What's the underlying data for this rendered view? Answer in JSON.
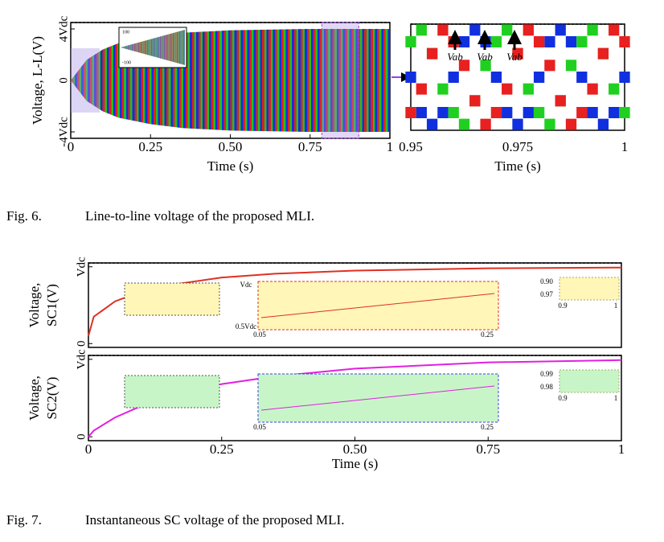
{
  "chart_data": [
    {
      "type": "band",
      "ylabel": "Voltage, L-L(V)",
      "xlabel": "Time (s)",
      "x": [
        0,
        0.05,
        0.1,
        0.15,
        0.25,
        0.35,
        0.5,
        0.75,
        1
      ],
      "values": [
        0,
        1.6,
        2.4,
        2.9,
        3.4,
        3.7,
        3.9,
        4,
        4
      ],
      "xlim": [
        0,
        1
      ],
      "ylim": [
        -4.5,
        4.5
      ],
      "xticks": [
        0,
        0.25,
        {
          "value": 0.5,
          "label": "0.50"
        },
        0.75,
        1
      ],
      "yticks": [
        {
          "value": 4,
          "label": "4Vdc"
        },
        0,
        {
          "value": -4,
          "label": "-4Vdc"
        }
      ],
      "inset_labels": [
        "100",
        "-100"
      ]
    },
    {
      "type": "step",
      "xlabel": "Time (s)",
      "x": [
        0.95,
        0.9525,
        0.955,
        0.9575,
        0.96,
        0.9625,
        0.965,
        0.9675,
        0.97,
        0.9725,
        0.975,
        0.9775,
        0.98,
        0.9825,
        0.985,
        0.9875,
        0.99,
        0.9925,
        0.995,
        0.9975,
        1
      ],
      "series": [
        {
          "color": "#1030e0",
          "values": [
            0,
            -3,
            -4,
            -3,
            0,
            3,
            4,
            3,
            0,
            -3,
            -4,
            -3,
            0,
            3,
            4,
            3,
            0,
            -3,
            -4,
            -3,
            0
          ]
        },
        {
          "color": "#20d020",
          "values": [
            3,
            4,
            2,
            -1,
            -3,
            -4,
            -2,
            1,
            3,
            4,
            2,
            -1,
            -3,
            -4,
            -2,
            1,
            3,
            4,
            2,
            -1,
            -3
          ]
        },
        {
          "color": "#e82020",
          "values": [
            -3,
            -1,
            2,
            4,
            3,
            1,
            -2,
            -4,
            -3,
            -1,
            2,
            4,
            3,
            1,
            -2,
            -4,
            -3,
            -1,
            2,
            4,
            3
          ]
        }
      ],
      "xlim": [
        0.95,
        1
      ],
      "ylim": [
        -4.5,
        4.5
      ],
      "xticks": [
        0.95,
        0.975,
        1
      ],
      "annotations": [
        "Vab",
        "Vab",
        "Vab"
      ]
    },
    {
      "type": "line",
      "ylabel": [
        "Voltage,",
        "SC1(V)"
      ],
      "color": "#e03020",
      "x": [
        0,
        0.01,
        0.05,
        0.1,
        0.15,
        0.25,
        0.35,
        0.5,
        0.75,
        1
      ],
      "values": [
        0.1,
        0.35,
        0.55,
        0.68,
        0.76,
        0.86,
        0.91,
        0.95,
        0.98,
        0.99
      ],
      "xlim": [
        0,
        1
      ],
      "ylim": [
        -0.05,
        1.05
      ],
      "yticks": [
        0,
        {
          "value": 1,
          "label": "Vdc"
        }
      ],
      "inset_labels": [
        "Vdc",
        "0.5Vdc",
        "0.05",
        "0.25"
      ],
      "zoom_labels": [
        "0.90",
        "0.97",
        "0.9",
        "1"
      ]
    },
    {
      "type": "line",
      "ylabel": [
        "Voltage,",
        "SC2(V)"
      ],
      "xlabel": "Time (s)",
      "color": "#e020e0",
      "x": [
        0,
        0.01,
        0.05,
        0.1,
        0.15,
        0.25,
        0.35,
        0.5,
        0.75,
        1
      ],
      "values": [
        0,
        0.08,
        0.25,
        0.4,
        0.52,
        0.68,
        0.78,
        0.88,
        0.96,
        0.99
      ],
      "xlim": [
        0,
        1
      ],
      "ylim": [
        -0.05,
        1.05
      ],
      "xticks": [
        0,
        0.25,
        {
          "value": 0.5,
          "label": "0.50"
        },
        0.75,
        1
      ],
      "yticks": [
        0,
        {
          "value": 1,
          "label": "Vdc"
        }
      ],
      "inset_labels": [
        "0.05",
        "0.25"
      ],
      "zoom_labels": [
        "0.99",
        "0.98",
        "0.9",
        "1"
      ]
    }
  ],
  "captions": [
    {
      "label": "Fig. 6.",
      "text": "Line-to-line voltage of the proposed MLI."
    },
    {
      "label": "Fig. 7.",
      "text": "Instantaneous SC voltage of the proposed MLI."
    }
  ]
}
